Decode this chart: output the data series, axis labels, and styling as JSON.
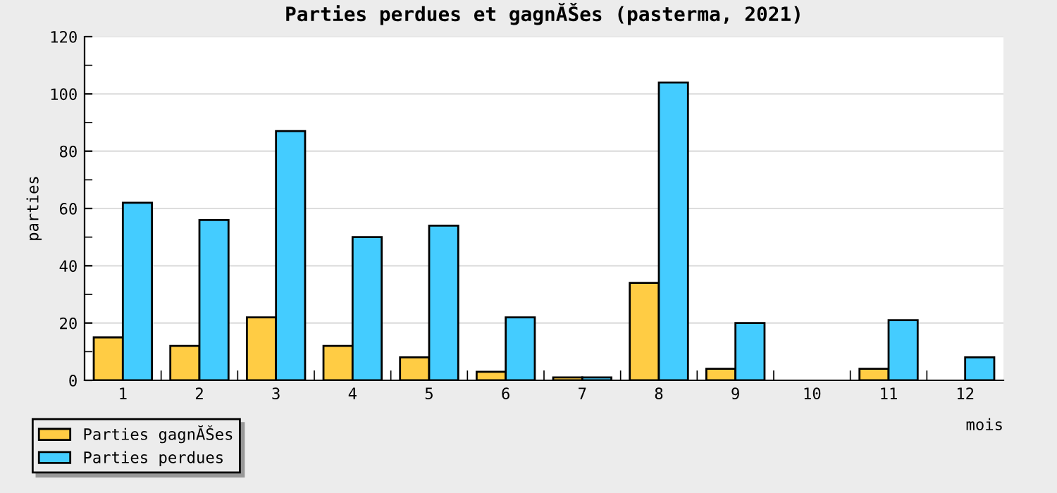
{
  "chart_data": {
    "type": "bar",
    "title": "Parties perdues et gagnĂŠes (pasterma, 2021)",
    "xlabel": "mois",
    "ylabel": "parties",
    "categories": [
      "1",
      "2",
      "3",
      "4",
      "5",
      "6",
      "7",
      "8",
      "9",
      "10",
      "11",
      "12"
    ],
    "series": [
      {
        "name": "Parties gagnĂŠes",
        "color": "#ffcc44",
        "values": [
          15,
          12,
          22,
          12,
          8,
          3,
          1,
          34,
          4,
          0,
          4,
          0
        ]
      },
      {
        "name": "Parties perdues",
        "color": "#44ccff",
        "values": [
          62,
          56,
          87,
          50,
          54,
          22,
          1,
          104,
          20,
          0,
          21,
          8
        ]
      }
    ],
    "ylim": [
      0,
      120
    ],
    "yticks": [
      0,
      20,
      40,
      60,
      80,
      100,
      120
    ],
    "grid": "y",
    "legend": "bottom left"
  }
}
